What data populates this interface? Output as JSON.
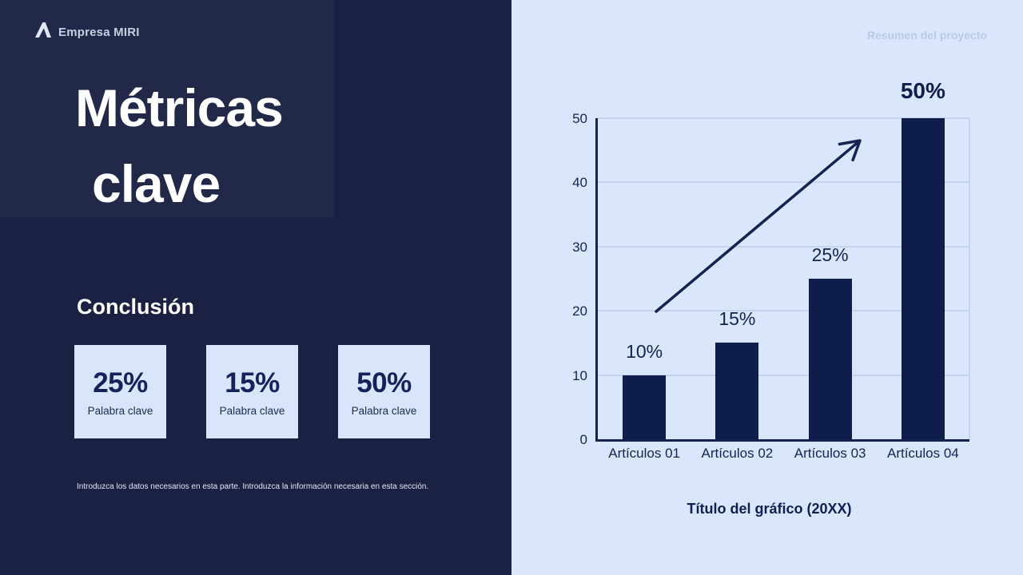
{
  "left_panel": {
    "brand": {
      "logo_icon": "company-logo-a-icon",
      "name": "Empresa MIRI"
    },
    "title_lines": [
      "Métricas",
      "clave"
    ],
    "section_heading": "Conclusión",
    "stats": [
      {
        "value": "25%",
        "label": "Palabra clave"
      },
      {
        "value": "15%",
        "label": "Palabra clave"
      },
      {
        "value": "50%",
        "label": "Palabra clave"
      }
    ],
    "footnote": "Introduzca los datos necesarios en esta parte. Introduzca la información necesaria en esta sección."
  },
  "right_panel": {
    "header": "Resumen del proyecto",
    "caption": "Título del gráfico (20XX)"
  },
  "chart_data": {
    "type": "bar",
    "categories": [
      "Artículos 01",
      "Artículos 02",
      "Artículos 03",
      "Artículos 04"
    ],
    "values": [
      10,
      15,
      25,
      50
    ],
    "bar_labels": [
      "10%",
      "15%",
      "25%",
      "50%"
    ],
    "emphasized_label_index": 3,
    "title": "Título del gráfico (20XX)",
    "xlabel": "",
    "ylabel": "",
    "ylim": [
      0,
      50
    ],
    "yticks": [
      0,
      10,
      20,
      30,
      40,
      50
    ],
    "grid": true,
    "legend": false,
    "annotations": [
      {
        "type": "arrow",
        "description": "upward trend arrow",
        "from_value": 20,
        "to_value": 46
      }
    ],
    "bar_color": "#0e1d49",
    "axis_color": "#13224e",
    "grid_color": "#c5d3ec",
    "panel_background": "#d9e6fc",
    "left_panel_background": "#1a2142"
  }
}
